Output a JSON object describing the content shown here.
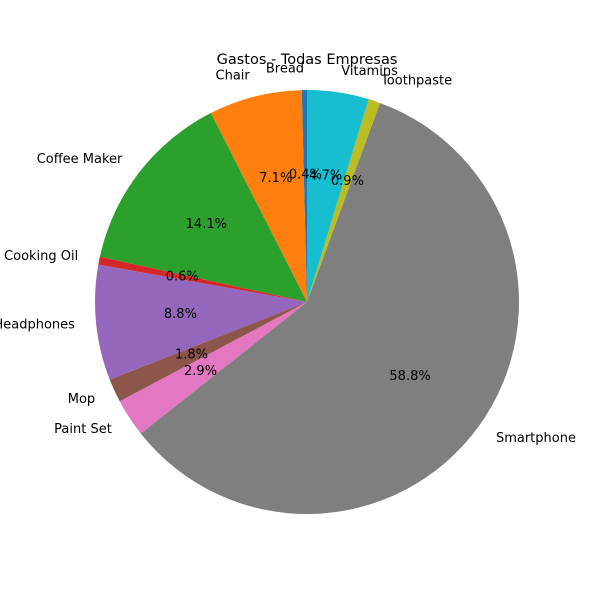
{
  "chart_data": {
    "type": "pie",
    "title": "Gastos - Todas Empresas",
    "start_angle_deg": 90,
    "direction": "counterclockwise",
    "slices": [
      {
        "label": "Bread",
        "percent": 0.4,
        "percent_label": "0.4%",
        "color": "#1f77b4"
      },
      {
        "label": "Chair",
        "percent": 7.1,
        "percent_label": "7.1%",
        "color": "#ff7f0e"
      },
      {
        "label": "Coffee Maker",
        "percent": 14.1,
        "percent_label": "14.1%",
        "color": "#2ca02c"
      },
      {
        "label": "Cooking Oil",
        "percent": 0.6,
        "percent_label": "0.6%",
        "color": "#d62728"
      },
      {
        "label": "Headphones",
        "percent": 8.8,
        "percent_label": "8.8%",
        "color": "#9467bd"
      },
      {
        "label": "Mop",
        "percent": 1.8,
        "percent_label": "1.8%",
        "color": "#8c564b"
      },
      {
        "label": "Paint Set",
        "percent": 2.9,
        "percent_label": "2.9%",
        "color": "#e377c2"
      },
      {
        "label": "Smartphone",
        "percent": 58.8,
        "percent_label": "58.8%",
        "color": "#7f7f7f"
      },
      {
        "label": "Toothpaste",
        "percent": 0.9,
        "percent_label": "0.9%",
        "color": "#bcbd22"
      },
      {
        "label": "Vitamins",
        "percent": 4.7,
        "percent_label": "4.7%",
        "color": "#17becf"
      }
    ]
  }
}
